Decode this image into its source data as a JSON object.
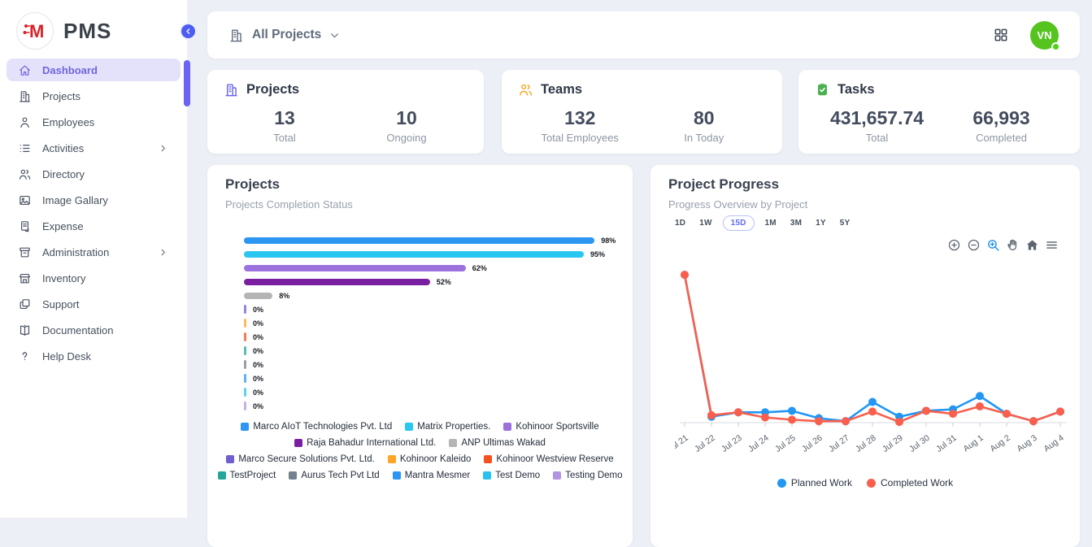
{
  "sidebar": {
    "logo_letter": "M",
    "logo_text": "PMS",
    "active_color": "#6e65dd",
    "items": [
      {
        "label": "Dashboard",
        "icon": "home-icon",
        "active": true
      },
      {
        "label": "Projects",
        "icon": "building-icon"
      },
      {
        "label": "Employees",
        "icon": "person-icon"
      },
      {
        "label": "Activities",
        "icon": "list-icon",
        "has_submenu": true
      },
      {
        "label": "Directory",
        "icon": "people-icon"
      },
      {
        "label": "Image Gallary",
        "icon": "image-icon"
      },
      {
        "label": "Expense",
        "icon": "receipt-icon"
      },
      {
        "label": "Administration",
        "icon": "archive-icon",
        "has_submenu": true
      },
      {
        "label": "Inventory",
        "icon": "store-icon"
      },
      {
        "label": "Support",
        "icon": "copy-icon"
      },
      {
        "label": "Documentation",
        "icon": "book-icon"
      },
      {
        "label": "Help Desk",
        "icon": "question-icon"
      }
    ]
  },
  "topbar": {
    "project_filter": "All Projects",
    "icons": [
      "building-icon",
      "chevron-down-icon",
      "grid-icon"
    ],
    "avatar_initials": "VN",
    "avatar_color": "#55c41f",
    "status_color": "#4cd614"
  },
  "stats": [
    {
      "title": "Projects",
      "icon": "building-icon",
      "accent": "#6c63f2",
      "metrics": [
        {
          "value": "13",
          "label": "Total"
        },
        {
          "value": "10",
          "label": "Ongoing"
        }
      ]
    },
    {
      "title": "Teams",
      "icon": "people-icon",
      "accent": "#f5a623",
      "metrics": [
        {
          "value": "132",
          "label": "Total Employees"
        },
        {
          "value": "80",
          "label": "In Today"
        }
      ]
    },
    {
      "title": "Tasks",
      "icon": "clipboard-check-icon",
      "accent": "#4caf50",
      "metrics": [
        {
          "value": "431,657.74",
          "label": "Total"
        },
        {
          "value": "66,993",
          "label": "Completed"
        }
      ]
    }
  ],
  "progress_controls": {
    "ranges": [
      "1D",
      "1W",
      "15D",
      "1M",
      "3M",
      "1Y",
      "5Y"
    ],
    "selected": "15D",
    "toolbar": [
      "zoom-in-icon",
      "zoom-out-icon",
      "zoom-select-icon",
      "pan-icon",
      "home-icon",
      "menu-icon"
    ]
  },
  "chart_data": [
    {
      "type": "bar",
      "orientation": "horizontal",
      "title": "Projects",
      "subtitle": "Projects Completion Status",
      "value_suffix": "%",
      "xlim": [
        0,
        100
      ],
      "grid": false,
      "legend_position": "bottom",
      "categories": [
        "Marco AIoT Technologies Pvt. Ltd",
        "Matrix Properties.",
        "Kohinoor Sportsville",
        "Raja Bahadur International Ltd.",
        "ANP Ultimas Wakad",
        "Marco Secure Solutions Pvt. Ltd.",
        "Kohinoor Kaleido",
        "Kohinoor Westview Reserve",
        "TestProject",
        "Aurus Tech Pvt Ltd",
        "Mantra Mesmer",
        "Test Demo",
        "Testing Demo"
      ],
      "values": [
        98,
        95,
        62,
        52,
        8,
        0,
        0,
        0,
        0,
        0,
        0,
        0,
        0
      ],
      "colors": [
        "#2d96f3",
        "#29c6f2",
        "#9b72dd",
        "#7b1fa2",
        "#b5b5b5",
        "#6f5fd0",
        "#ffa424",
        "#f4511e",
        "#26a69a",
        "#74808c",
        "#2d96f3",
        "#27c2ee",
        "#b295e2"
      ]
    },
    {
      "type": "line",
      "title": "Project Progress",
      "subtitle": "Progress Overview by Project",
      "x": [
        "Jul 21",
        "Jul 22",
        "Jul 23",
        "Jul 24",
        "Jul 25",
        "Jul 26",
        "Jul 27",
        "Jul 28",
        "Jul 29",
        "Jul 30",
        "Jul 31",
        "Aug 1",
        "Aug 2",
        "Aug 3",
        "Aug 4"
      ],
      "ylim": [
        0,
        105
      ],
      "grid": false,
      "legend_position": "bottom",
      "series": [
        {
          "name": "Planned Work",
          "color": "#2196f3",
          "values": [
            100,
            4,
            7,
            7,
            8,
            3,
            1,
            14,
            4,
            8,
            9,
            18,
            6,
            1,
            7.5
          ]
        },
        {
          "name": "Completed Work",
          "color": "#f95f4c",
          "values": [
            100,
            5,
            7,
            3.5,
            2,
            1,
            1,
            7.5,
            0.5,
            8,
            6,
            11,
            6,
            1,
            7.5
          ]
        }
      ]
    }
  ]
}
